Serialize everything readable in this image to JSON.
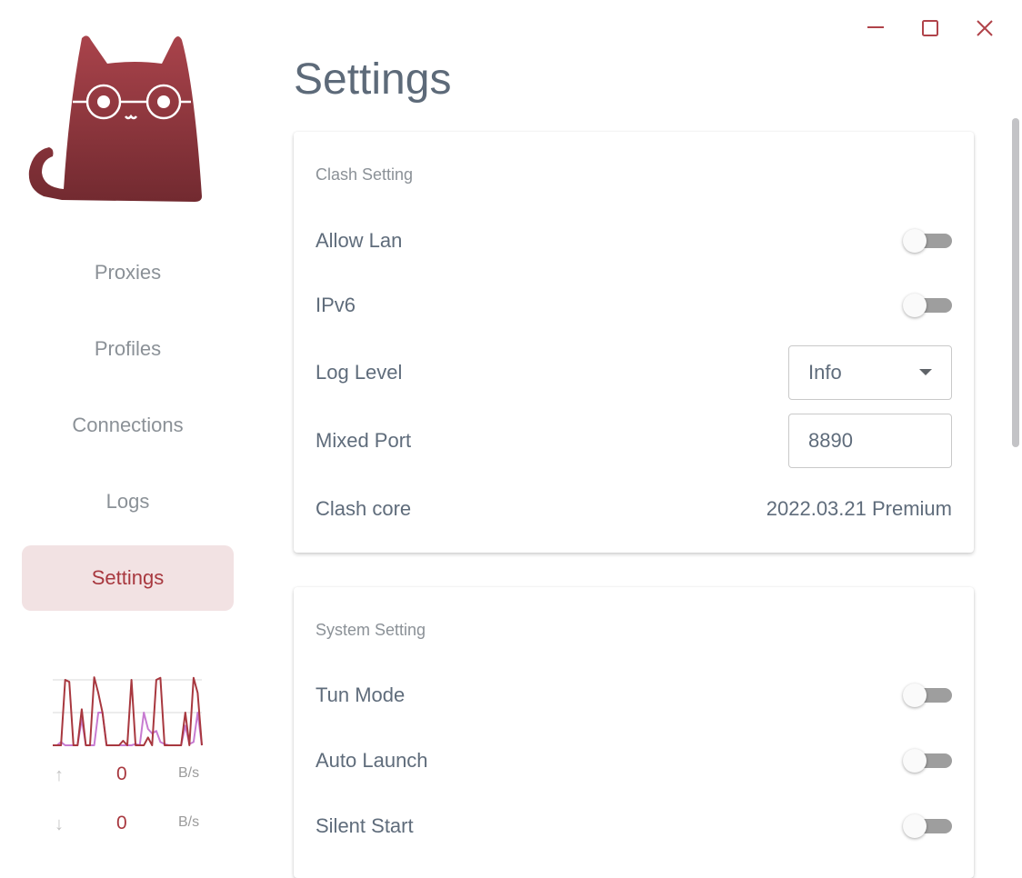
{
  "window_controls": {
    "minimize": "minimize-icon",
    "maximize": "maximize-icon",
    "close": "close-icon",
    "color": "#b0434a"
  },
  "sidebar": {
    "items": [
      {
        "label": "Proxies"
      },
      {
        "label": "Profiles"
      },
      {
        "label": "Connections"
      },
      {
        "label": "Logs"
      },
      {
        "label": "Settings",
        "active": true
      }
    ],
    "traffic": {
      "upload": {
        "value": "0",
        "unit": "B/s",
        "icon": "arrow-up-icon"
      },
      "download": {
        "value": "0",
        "unit": "B/s",
        "icon": "arrow-down-icon"
      },
      "graph": {
        "download_series": [
          0,
          0,
          0,
          1.0,
          0.97,
          0,
          0,
          0.55,
          0,
          0,
          1.04,
          0.8,
          0.5,
          0,
          0,
          0,
          0,
          0.07,
          0,
          1.0,
          0,
          0,
          0,
          0.12,
          0,
          1.0,
          1.03,
          0,
          0,
          0,
          0,
          0,
          0.5,
          0,
          1.03,
          0.8,
          0
        ],
        "upload_series": [
          0,
          0,
          0.05,
          0,
          0,
          0,
          0,
          0.4,
          0,
          0,
          0,
          0.5,
          0.5,
          0,
          0,
          0,
          0,
          0,
          0,
          0,
          0.02,
          0,
          0.5,
          0.25,
          0.18,
          0.22,
          0.05,
          0.02,
          0,
          0,
          0,
          0,
          0.3,
          0.02,
          0.05,
          0.5,
          0
        ],
        "colors": {
          "download": "#a8383f",
          "upload": "#c77bd1"
        }
      }
    }
  },
  "main": {
    "title": "Settings",
    "clash_setting": {
      "title": "Clash Setting",
      "allow_lan": {
        "label": "Allow Lan",
        "on": false
      },
      "ipv6": {
        "label": "IPv6",
        "on": false
      },
      "log_level": {
        "label": "Log Level",
        "value": "Info"
      },
      "mixed_port": {
        "label": "Mixed Port",
        "value": "8890"
      },
      "clash_core": {
        "label": "Clash core",
        "value": "2022.03.21 Premium"
      }
    },
    "system_setting": {
      "title": "System Setting",
      "tun_mode": {
        "label": "Tun Mode",
        "on": false
      },
      "auto_launch": {
        "label": "Auto Launch",
        "on": false
      },
      "silent_start": {
        "label": "Silent Start",
        "on": false
      }
    }
  }
}
